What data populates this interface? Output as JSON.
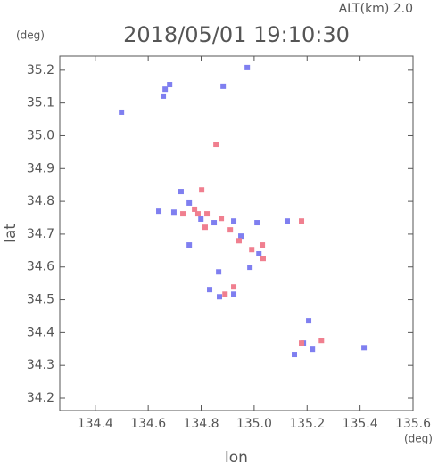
{
  "chart_data": {
    "type": "scatter",
    "title": "2018/05/01 19:10:30",
    "subtitle": "ALT(km) 2.0",
    "y_unit": "(deg)",
    "x_unit": "(deg)",
    "x_label": "lon",
    "y_label": "lat",
    "xlim": [
      134.266,
      135.6
    ],
    "ylim": [
      34.162,
      35.243
    ],
    "xticks": [
      134.4,
      134.6,
      134.8,
      {
        "value": 135,
        "label": "135.0"
      },
      135.2,
      135.4,
      135.6
    ],
    "yticks": [
      34.2,
      34.3,
      34.4,
      34.5,
      34.6,
      34.7,
      34.8,
      34.9,
      {
        "value": 35,
        "label": "35.0"
      },
      35.1,
      35.2
    ],
    "series": [
      {
        "color": "#7f7ff0",
        "x": [
          134.664,
          134.681,
          134.657,
          134.974,
          134.883,
          134.499,
          134.724,
          134.755,
          134.697,
          134.64,
          134.799,
          134.849,
          134.923,
          135.011,
          134.95,
          135.018,
          134.984,
          134.866,
          134.832,
          134.923,
          134.869,
          135.206,
          135.186,
          135.152,
          135.22,
          135.415,
          134.755,
          135.125
        ],
        "values": [
          35.142,
          35.156,
          35.121,
          35.208,
          35.151,
          35.072,
          34.83,
          34.795,
          34.767,
          34.77,
          34.746,
          34.735,
          34.74,
          34.735,
          34.694,
          34.64,
          34.599,
          34.585,
          34.531,
          34.517,
          34.509,
          34.436,
          34.368,
          34.333,
          34.349,
          34.354,
          34.667,
          34.74
        ]
      },
      {
        "color": "#f07f8f",
        "x": [
          134.856,
          134.802,
          134.775,
          134.822,
          134.876,
          134.91,
          134.943,
          134.991,
          135.034,
          134.923,
          134.89,
          135.179,
          135.254,
          134.788,
          134.731,
          134.815,
          135.031,
          135.179
        ],
        "values": [
          34.974,
          34.835,
          34.776,
          34.762,
          34.748,
          34.713,
          34.68,
          34.653,
          34.626,
          34.539,
          34.517,
          34.368,
          34.376,
          34.762,
          34.762,
          34.721,
          34.667,
          34.74
        ]
      }
    ]
  }
}
